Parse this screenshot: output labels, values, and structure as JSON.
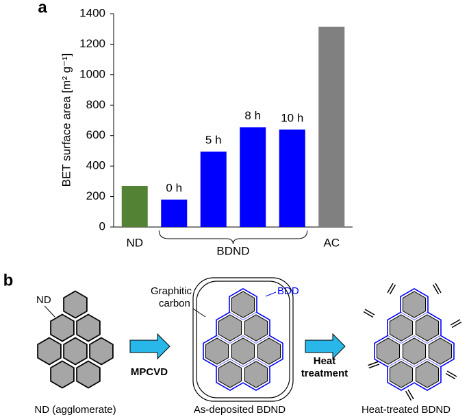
{
  "panel_labels": [
    "a",
    "b"
  ],
  "chart_data": {
    "type": "bar",
    "ylabel": "BET surface area [m² g⁻¹]",
    "categories": [
      "ND",
      null,
      null,
      null,
      null,
      "AC"
    ],
    "values": [
      270,
      180,
      495,
      655,
      640,
      1315
    ],
    "bar_labels": [
      null,
      "0 h",
      "5 h",
      "8 h",
      "10 h",
      null
    ],
    "colors": [
      "#548235",
      "#0000ff",
      "#0000ff",
      "#0000ff",
      "#0000ff",
      "#808080"
    ],
    "group_label": "BDND",
    "ylim": [
      0,
      1400
    ],
    "yticks": [
      0,
      200,
      400,
      600,
      800,
      1000,
      1200,
      1400
    ]
  },
  "diagram": {
    "nd_label": "ND",
    "graphitic_carbon": [
      "Graphitic",
      "carbon"
    ],
    "bdd_label": "BDD",
    "step1": "MPCVD",
    "step2": [
      "Heat",
      "treatment"
    ],
    "captions": [
      "ND (agglomerate)",
      "As-deposited BDND",
      "Heat-treated BDND"
    ]
  }
}
